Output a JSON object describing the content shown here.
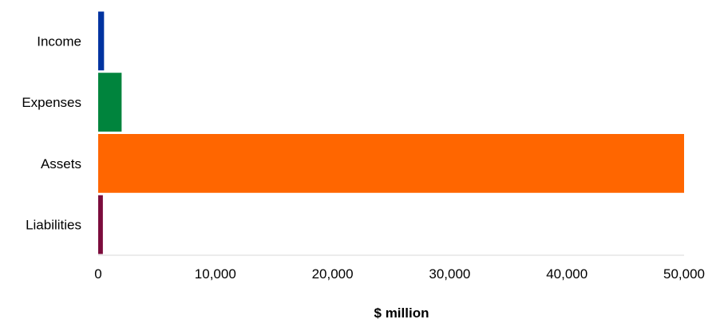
{
  "chart_data": {
    "type": "bar",
    "orientation": "horizontal",
    "categories": [
      "Income",
      "Expenses",
      "Assets",
      "Liabilities"
    ],
    "values": [
      500,
      2000,
      50000,
      400
    ],
    "colors": [
      "#0033a0",
      "#00843d",
      "#ff6600",
      "#7b0c3c"
    ],
    "xlabel": "$ million",
    "ylabel": "",
    "xlim": [
      0,
      50000
    ],
    "xticks": [
      "0",
      "10,000",
      "20,000",
      "30,000",
      "40,000",
      "50,000"
    ],
    "xtick_values": [
      0,
      10000,
      20000,
      30000,
      40000,
      50000
    ],
    "grid": false,
    "legend": "none"
  }
}
